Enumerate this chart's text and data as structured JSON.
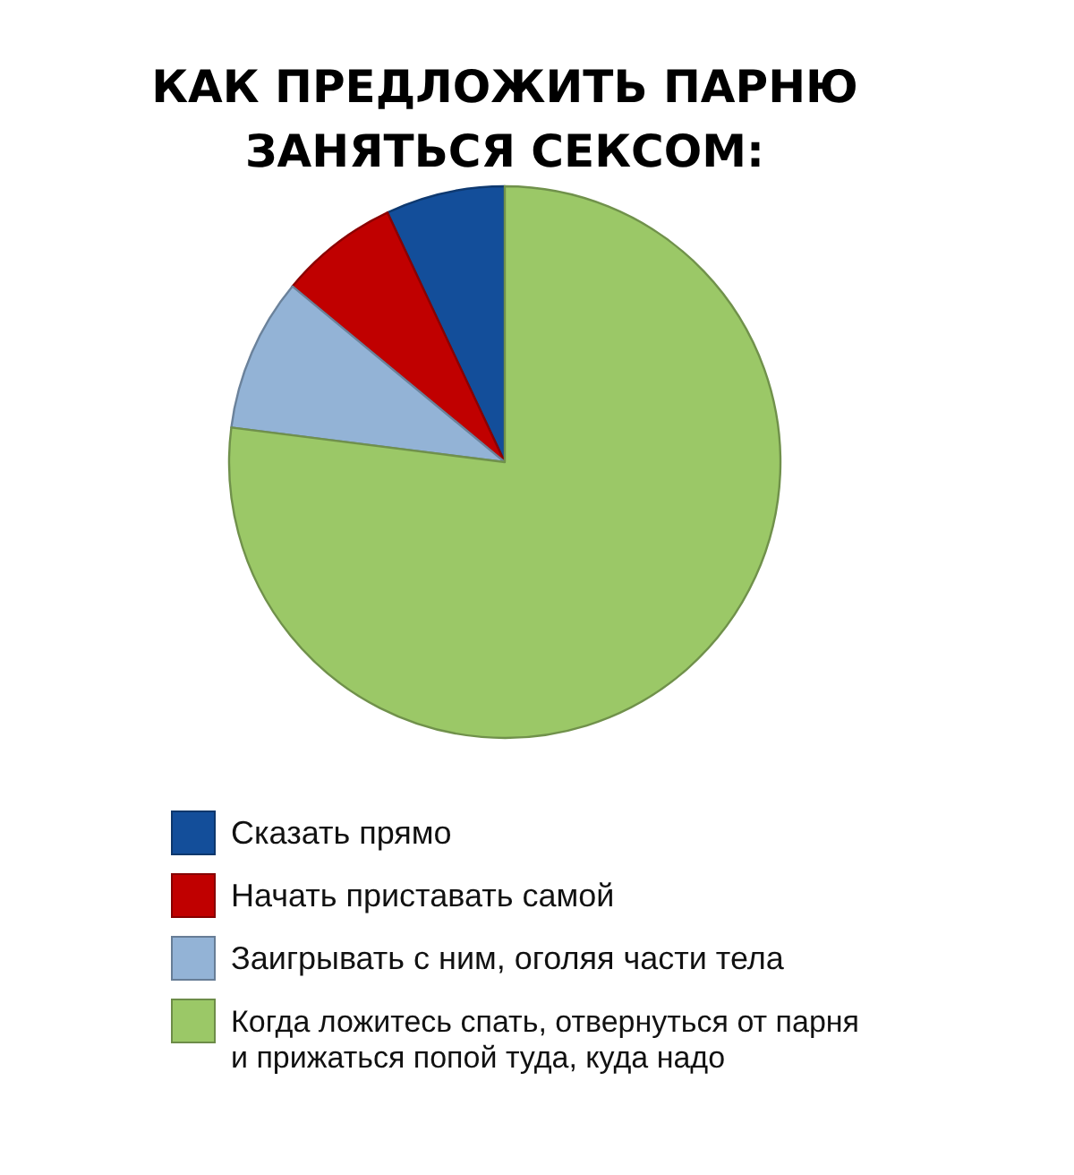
{
  "chart_data": {
    "type": "pie",
    "title": "КАК ПРЕДЛОЖИТЬ ПАРНЮ ЗАНЯТЬСЯ СЕКСОМ:",
    "categories": [
      "Сказать прямо",
      "Начать приставать самой",
      "Заигрывать с ним, оголяя части тела",
      "Когда ложитесь спать, отвернуться от парня и прижаться попой туда, куда надо"
    ],
    "values": [
      7,
      7,
      9,
      77
    ],
    "colors": [
      "#134e9a",
      "#c00000",
      "#93b3d6",
      "#9bc867"
    ],
    "legend": "bottom"
  }
}
